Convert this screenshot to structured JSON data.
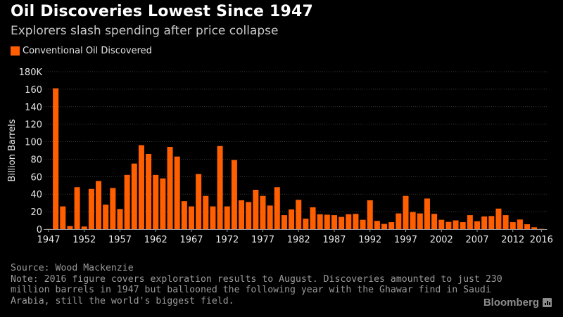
{
  "header": {
    "title": "Oil Discoveries Lowest Since 1947",
    "subtitle": "Explorers slash spending after price collapse"
  },
  "colors": {
    "bar": "#ff5f00",
    "background": "#000000",
    "gridline": "#3a3a3a"
  },
  "footer": {
    "source": "Source: Wood Mackenzie",
    "note_lines": [
      "Note: 2016 figure covers exploration results to August. Discoveries amounted to just 230",
      "million barrels in 1947 but ballooned the following year with the Ghawar find in Saudi",
      "Arabia, still the world's biggest field."
    ],
    "brand": "Bloomberg",
    "brand_icon": "bloomberg-chart-icon"
  },
  "chart_data": {
    "type": "bar",
    "title": "Oil Discoveries Lowest Since 1947",
    "subtitle": "Explorers slash spending after price collapse",
    "xlabel": "",
    "ylabel": "Billion Barrels",
    "legend": [
      {
        "name": "Conventional Oil Discovered",
        "color": "#ff5f00"
      }
    ],
    "legend_position": "top-left",
    "grid": true,
    "ylim": [
      0,
      180
    ],
    "yticks": [
      0,
      20,
      40,
      60,
      80,
      100,
      120,
      140,
      160,
      180
    ],
    "ytick_labels": [
      "0",
      "20",
      "40",
      "60",
      "80",
      "100",
      "120",
      "140",
      "160",
      "180K"
    ],
    "xlim": [
      1947,
      2016
    ],
    "xticks": [
      1947,
      1952,
      1957,
      1962,
      1967,
      1972,
      1977,
      1982,
      1987,
      1992,
      1997,
      2002,
      2007,
      2012,
      2016
    ],
    "xtick_labels": [
      "1947",
      "1952",
      "1957",
      "1962",
      "1967",
      "1972",
      "1977",
      "1982",
      "1987",
      "1992",
      "1997",
      "2002",
      "2007",
      "2012",
      "2016"
    ],
    "categories": [
      1947,
      1948,
      1949,
      1950,
      1951,
      1952,
      1953,
      1954,
      1955,
      1956,
      1957,
      1958,
      1959,
      1960,
      1961,
      1962,
      1963,
      1964,
      1965,
      1966,
      1967,
      1968,
      1969,
      1970,
      1971,
      1972,
      1973,
      1974,
      1975,
      1976,
      1977,
      1978,
      1979,
      1980,
      1981,
      1982,
      1983,
      1984,
      1985,
      1986,
      1987,
      1988,
      1989,
      1990,
      1991,
      1992,
      1993,
      1994,
      1995,
      1996,
      1997,
      1998,
      1999,
      2000,
      2001,
      2002,
      2003,
      2004,
      2005,
      2006,
      2007,
      2008,
      2009,
      2010,
      2011,
      2012,
      2013,
      2014,
      2015,
      2016
    ],
    "series": [
      {
        "name": "Conventional Oil Discovered",
        "values": [
          0.23,
          161,
          26,
          3.5,
          48,
          3,
          46,
          55,
          28,
          47,
          23,
          62,
          75,
          96,
          86,
          62,
          58,
          94,
          83,
          32,
          26,
          63,
          38,
          26,
          95,
          26,
          79,
          33,
          31,
          45,
          38,
          27,
          48,
          16,
          22.5,
          33.5,
          12,
          25,
          17,
          16.5,
          16,
          14,
          17,
          17.5,
          10.7,
          33,
          9.4,
          6,
          8,
          18,
          38,
          19.5,
          18,
          35,
          17.5,
          10.7,
          8.3,
          10,
          8,
          16,
          9,
          14.5,
          15,
          23.5,
          16,
          8,
          11,
          5.6,
          2.2,
          0.3
        ]
      }
    ]
  }
}
